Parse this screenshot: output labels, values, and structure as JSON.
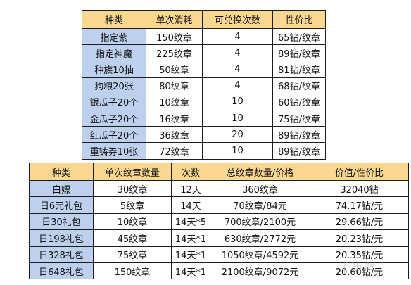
{
  "table1": {
    "headers": [
      "种类",
      "单次消耗",
      "可兑换次数",
      "性价比"
    ],
    "rows": [
      [
        "指定紫",
        "150纹章",
        "4",
        "65钻/纹章"
      ],
      [
        "指定神魔",
        "225纹章",
        "4",
        "89钻/纹章"
      ],
      [
        "种族10抽",
        "50纹章",
        "4",
        "81钻/纹章"
      ],
      [
        "狗粮20张",
        "80纹章",
        "4",
        "68钻/纹章"
      ],
      [
        "银瓜子20个",
        "10纹章",
        "10",
        "60钻/纹章"
      ],
      [
        "金瓜子20个",
        "16纹章",
        "10",
        "75钻/纹章"
      ],
      [
        "红瓜子20个",
        "36纹章",
        "20",
        "89钻/纹章"
      ],
      [
        "重铸券10张",
        "72纹章",
        "10",
        "89钻/纹章"
      ]
    ]
  },
  "table2": {
    "headers": [
      "种类",
      "单次纹章数量",
      "次数",
      "总纹章数量/价格",
      "价值/性价比"
    ],
    "rows": [
      [
        "白嫖",
        "30纹章",
        "12天",
        "360纹章",
        "32040钻"
      ],
      [
        "日6元礼包",
        "5纹章",
        "14天",
        "70纹章/84元",
        "74.17钻/元"
      ],
      [
        "日30礼包",
        "10纹章",
        "14天*5",
        "700纹章/2100元",
        "29.66钻/元"
      ],
      [
        "日198礼包",
        "45纹章",
        "14天*1",
        "630纹章/2772元",
        "20.23钻/元"
      ],
      [
        "日328礼包",
        "75纹章",
        "14天*1",
        "1050纹章/4592元",
        "20.35钻/元"
      ],
      [
        "日648礼包",
        "150纹章",
        "14天*1",
        "2100纹章/9072元",
        "20.60钻/元"
      ]
    ]
  },
  "watermark": "九游",
  "colors": {
    "header": "#fbd88f",
    "category": "#bdd1ee",
    "border": "#1c1c1c"
  }
}
